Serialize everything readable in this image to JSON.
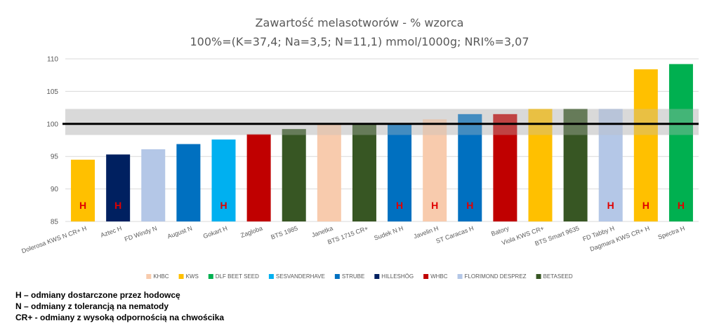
{
  "chart_data": {
    "type": "bar",
    "title": "Zawartość melasotworów - % wzorca",
    "subtitle": "100%=(K=37,4; Na=3,5; N=11,1) mmol/1000g; NRI%=3,07",
    "ylim": [
      85,
      110
    ],
    "yticks": [
      "85",
      "90",
      "95",
      "100",
      "105",
      "110"
    ],
    "reference_line": 100,
    "reference_band": [
      98.3,
      102.3
    ],
    "categories": [
      "Dolerosa KWS N CR+ H",
      "Aztec  H",
      "FD Windy N",
      "August N",
      "Gokart  H",
      "Zagloba",
      "BTS 1985",
      "Janetka",
      "BTS 1715 CR+",
      "Sudek N H",
      "Javelin H",
      "ST Caracas  H",
      "Batory",
      "Viola KWS CR+",
      "BTS Smart 9635",
      "FD Tabby  H",
      "Dagmara KWS CR+ H",
      "Spectra  H"
    ],
    "values": [
      94.5,
      95.3,
      96.1,
      96.9,
      97.6,
      98.4,
      99.2,
      100.0,
      99.9,
      99.9,
      100.7,
      101.5,
      101.5,
      102.3,
      102.3,
      102.3,
      108.4,
      109.2
    ],
    "breeders": [
      "KWS",
      "HILLESHÖG",
      "FLORIMOND DESPREZ",
      "STRUBE",
      "SESVANDERHAVE",
      "WHBC",
      "BETASEED",
      "KHBC",
      "BETASEED",
      "STRUBE",
      "KHBC",
      "STRUBE",
      "WHBC",
      "KWS",
      "BETASEED",
      "FLORIMOND DESPREZ",
      "KWS",
      "DLF BEET SEED"
    ],
    "bar_marks": [
      "H",
      "H",
      "",
      "",
      "H",
      "",
      "",
      "",
      "",
      "H",
      "H",
      "H",
      "",
      "",
      "",
      "H",
      "H",
      "H"
    ],
    "legend": [
      {
        "name": "KHBC",
        "color": "#f8cbad"
      },
      {
        "name": "KWS",
        "color": "#ffc000"
      },
      {
        "name": "DLF BEET SEED",
        "color": "#00b050"
      },
      {
        "name": "SESVANDERHAVE",
        "color": "#00b0f0"
      },
      {
        "name": "STRUBE",
        "color": "#0070c0"
      },
      {
        "name": "HILLESHÖG",
        "color": "#002060"
      },
      {
        "name": "WHBC",
        "color": "#c00000"
      },
      {
        "name": "FLORIMOND DESPREZ",
        "color": "#b4c7e7"
      },
      {
        "name": "BETASEED",
        "color": "#375623"
      }
    ],
    "legend_position": "bottom",
    "grid": true
  },
  "notes": [
    "H – odmiany dostarczone przez hodowcę",
    "N – odmiany z tolerancją na nematody",
    "CR+ - odmiany z wysoką odpornością na chwościka"
  ]
}
